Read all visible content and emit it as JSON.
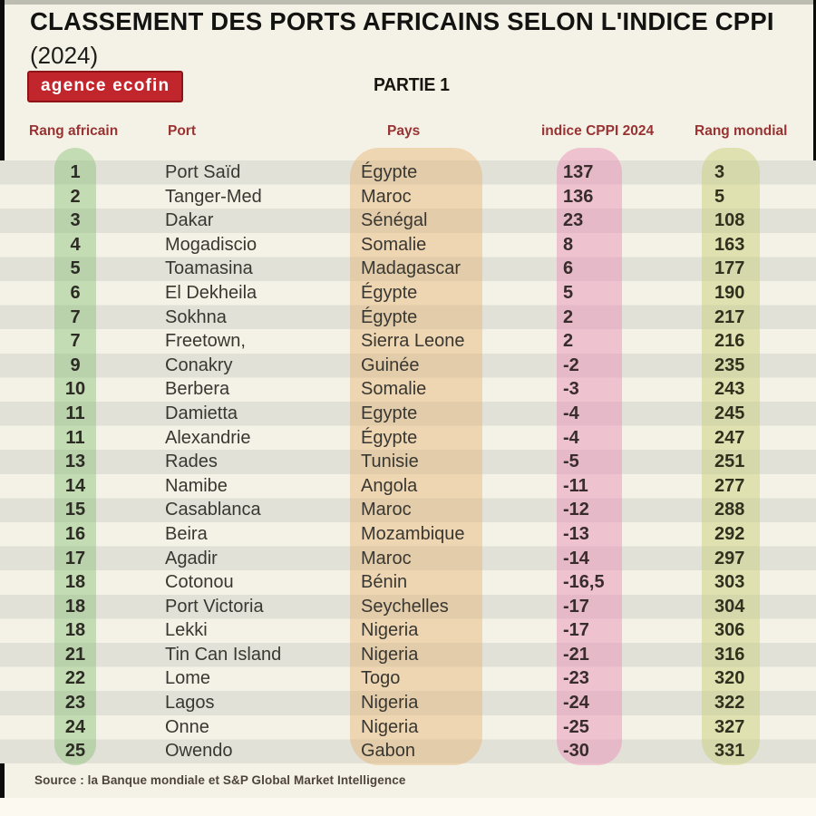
{
  "header": {
    "title": "CLASSEMENT DES PORTS AFRICAINS SELON L'INDICE CPPI",
    "year": "(2024)",
    "logo": "agence ecofin",
    "part": "PARTIE 1"
  },
  "footer": {
    "source": "Source : la Banque mondiale et S&P Global Market Intelligence"
  },
  "colors": {
    "page_bg": "#f4f2e6",
    "stripe_gray": "#e2e1d8",
    "rank_pill": "#c2ddb4",
    "country_pill": "#eed5b0",
    "cppi_pill": "#efc3d5",
    "world_pill": "#e0e2b7",
    "column_header_text": "#993333",
    "logo_red": "#c2262d",
    "title_text": "#131311"
  },
  "chart_data": {
    "type": "table",
    "title": "CLASSEMENT DES PORTS AFRICAINS SELON L'INDICE CPPI (2024)",
    "columns": [
      "Rang africain",
      "Port",
      "Pays",
      "indice CPPI 2024",
      "Rang mondial"
    ],
    "rows": [
      [
        "1",
        "Port Saïd",
        "Égypte",
        "137",
        "3"
      ],
      [
        "2",
        "Tanger-Med",
        "Maroc",
        "136",
        "5"
      ],
      [
        "3",
        "Dakar",
        "Sénégal",
        "23",
        "108"
      ],
      [
        "4",
        "Mogadiscio",
        "Somalie",
        "8",
        "163"
      ],
      [
        "5",
        "Toamasina",
        "Madagascar",
        "6",
        "177"
      ],
      [
        "6",
        "El Dekheila",
        "Égypte",
        "5",
        "190"
      ],
      [
        "7",
        "Sokhna",
        "Égypte",
        "2",
        "217"
      ],
      [
        "7",
        "Freetown,",
        "Sierra Leone",
        "2",
        "216"
      ],
      [
        "9",
        "Conakry",
        "Guinée",
        "-2",
        "235"
      ],
      [
        "10",
        "Berbera",
        "Somalie",
        "-3",
        "243"
      ],
      [
        "11",
        "Damietta",
        "Egypte",
        "-4",
        "245"
      ],
      [
        "11",
        "Alexandrie",
        "Égypte",
        "-4",
        "247"
      ],
      [
        "13",
        "Rades",
        "Tunisie",
        "-5",
        "251"
      ],
      [
        "14",
        "Namibe",
        "Angola",
        "-11",
        "277"
      ],
      [
        "15",
        "Casablanca",
        "Maroc",
        "-12",
        "288"
      ],
      [
        "16",
        "Beira",
        "Mozambique",
        "-13",
        "292"
      ],
      [
        "17",
        "Agadir",
        "Maroc",
        "-14",
        "297"
      ],
      [
        "18",
        "Cotonou",
        "Bénin",
        "-16,5",
        "303"
      ],
      [
        "18",
        "Port Victoria",
        "Seychelles",
        "-17",
        "304"
      ],
      [
        "18",
        "Lekki",
        "Nigeria",
        "-17",
        "306"
      ],
      [
        "21",
        "Tin Can Island",
        "Nigeria",
        "-21",
        "316"
      ],
      [
        "22",
        "Lome",
        "Togo",
        "-23",
        "320"
      ],
      [
        "23",
        "Lagos",
        "Nigeria",
        "-24",
        "322"
      ],
      [
        "24",
        "Onne",
        "Nigeria",
        "-25",
        "327"
      ],
      [
        "25",
        "Owendo",
        "Gabon",
        "-30",
        "331"
      ]
    ]
  }
}
